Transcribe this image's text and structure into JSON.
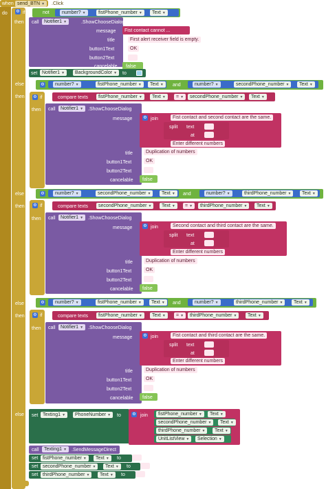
{
  "event": {
    "when": "when",
    "component": "send_BTN",
    "event": ".Click",
    "do": "do"
  },
  "kw": {
    "if": "if",
    "then": "then",
    "else_if": "else if",
    "else": "else",
    "not": "not",
    "and": "and",
    "number_q": "number?",
    "text": "Text",
    "call": "call",
    "set": "set",
    "to": "to",
    "join": "join",
    "compare_texts": "compare texts",
    "equals": "=",
    "split": "split",
    "text_lbl": "text",
    "at": "at",
    "message": "message",
    "title": "title",
    "button1": "button1Text",
    "button2": "button2Text",
    "cancelable": "cancelable",
    "false": "false",
    "ok": "OK",
    "empty": " "
  },
  "components": {
    "fist": "fistPhone_number",
    "second": "secondPhone_number",
    "third": "thirdPhone_number",
    "notifier": "Notifier1",
    "choose": ".ShowChooseDialog",
    "bgcolor": "BackgroundColor",
    "texting": "Texting1",
    "phone": "PhoneNumber",
    "send": ".SendMessageDirect",
    "unitlist": "UnitListView",
    "selection": "Selection"
  },
  "block1": {
    "message": "Fist contact cannot ...",
    "title": "First alert receiver field is empty."
  },
  "block2": {
    "message": "Fist contact and second contact are the same.",
    "split_text": " ",
    "at": " ",
    "enter": "Enter different numbers",
    "title": "Duplication of numbers"
  },
  "block3": {
    "message": "Second contact and third contact are the same.",
    "enter": "Enter different numbers",
    "title": "Duplication of numbers"
  },
  "block4": {
    "message": "Fist contact and third contact are the same.",
    "enter": "Enter different numbers",
    "title": "Duplication of numbers"
  },
  "colors": {
    "event": "#c29d2c",
    "logic": "#6fb33f",
    "component": "#7a5aa3",
    "text": "#b62e5a",
    "setter": "#2a6f4a"
  }
}
